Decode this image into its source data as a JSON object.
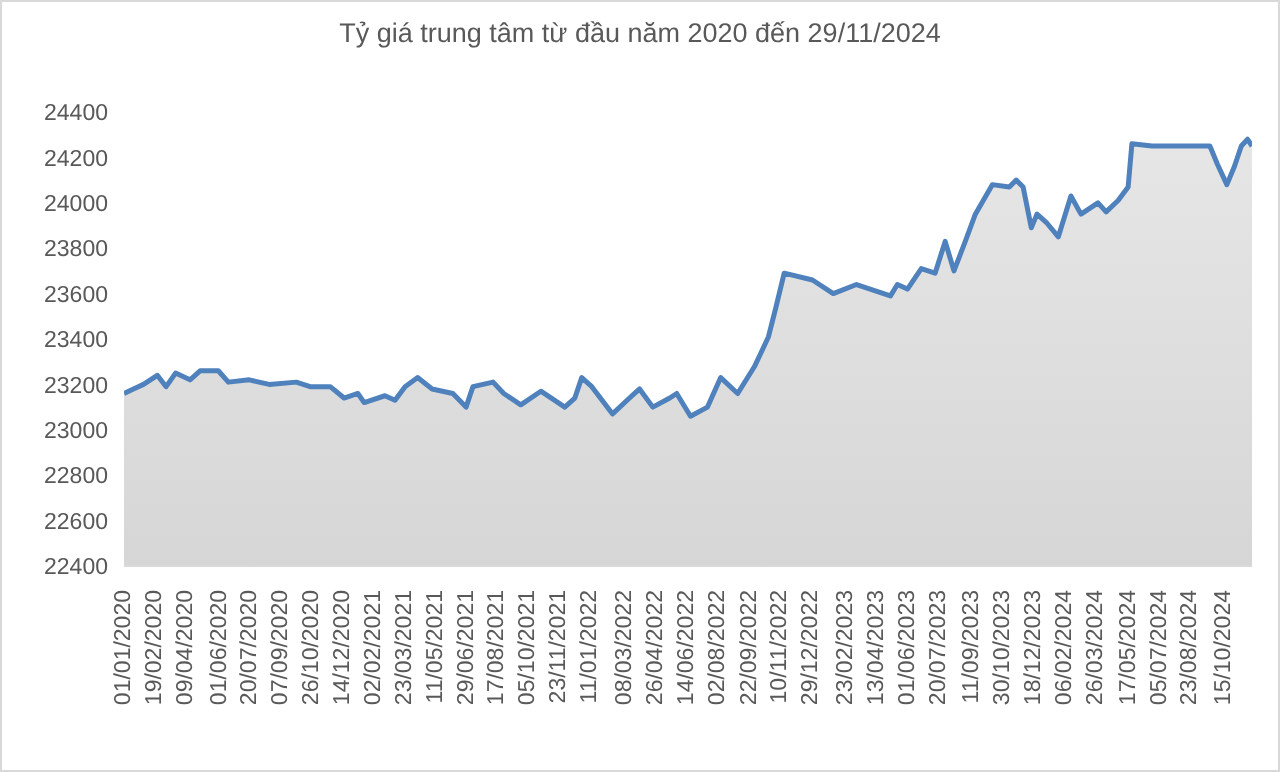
{
  "chart_data": {
    "type": "area",
    "title": "Tỷ giá trung tâm từ đầu năm 2020 đến 29/11/2024",
    "x": [
      "2020-01-01",
      "2020-01-16",
      "2020-02-01",
      "2020-02-23",
      "2020-03-08",
      "2020-03-23",
      "2020-04-15",
      "2020-05-01",
      "2020-05-30",
      "2020-06-15",
      "2020-07-18",
      "2020-08-19",
      "2020-10-01",
      "2020-10-23",
      "2020-11-24",
      "2020-12-16",
      "2021-01-07",
      "2021-01-17",
      "2021-02-19",
      "2021-03-07",
      "2021-03-23",
      "2021-04-12",
      "2021-05-05",
      "2021-06-07",
      "2021-06-28",
      "2021-07-09",
      "2021-08-10",
      "2021-08-27",
      "2021-09-23",
      "2021-10-25",
      "2021-11-16",
      "2021-12-02",
      "2021-12-18",
      "2021-12-29",
      "2022-01-14",
      "2022-02-16",
      "2022-03-15",
      "2022-03-31",
      "2022-04-21",
      "2022-05-18",
      "2022-05-29",
      "2022-06-20",
      "2022-07-17",
      "2022-08-07",
      "2022-09-03",
      "2022-09-30",
      "2022-10-22",
      "2022-11-02",
      "2022-11-16",
      "2022-12-31",
      "2023-02-02",
      "2023-03-11",
      "2023-05-04",
      "2023-05-15",
      "2023-05-31",
      "2023-06-22",
      "2023-07-14",
      "2023-07-30",
      "2023-08-13",
      "2023-08-31",
      "2023-09-16",
      "2023-10-13",
      "2023-11-09",
      "2023-11-20",
      "2023-12-01",
      "2023-12-14",
      "2023-12-23",
      "2024-01-08",
      "2024-01-26",
      "2024-02-15",
      "2024-03-02",
      "2024-03-29",
      "2024-04-11",
      "2024-04-30",
      "2024-05-16",
      "2024-05-22",
      "2024-06-23",
      "2024-07-26",
      "2024-08-27",
      "2024-09-23",
      "2024-10-05",
      "2024-10-20",
      "2024-11-01",
      "2024-11-12",
      "2024-11-22",
      "2024-11-29"
    ],
    "series": [
      {
        "color": "#4f81bd",
        "values": [
          23160,
          23180,
          23200,
          23240,
          23190,
          23250,
          23220,
          23260,
          23260,
          23210,
          23220,
          23200,
          23210,
          23190,
          23190,
          23140,
          23160,
          23120,
          23150,
          23130,
          23190,
          23230,
          23180,
          23160,
          23100,
          23190,
          23210,
          23160,
          23110,
          23170,
          23130,
          23100,
          23140,
          23230,
          23190,
          23070,
          23140,
          23180,
          23100,
          23140,
          23160,
          23060,
          23100,
          23230,
          23160,
          23280,
          23410,
          23530,
          23690,
          23660,
          23600,
          23640,
          23590,
          23640,
          23620,
          23710,
          23690,
          23830,
          23700,
          23830,
          23950,
          24080,
          24070,
          24100,
          24070,
          23890,
          23950,
          23910,
          23850,
          24030,
          23950,
          24000,
          23960,
          24010,
          24070,
          24260,
          24250,
          24250,
          24250,
          24250,
          24170,
          24080,
          24160,
          24250,
          24280,
          24250
        ]
      }
    ],
    "xlim": [
      "2020-01-01",
      "2024-11-29"
    ],
    "xticks": [
      {
        "value": "2020-01-01",
        "label": "01/01/2020"
      },
      {
        "value": "2020-02-19",
        "label": "19/02/2020"
      },
      {
        "value": "2020-04-09",
        "label": "09/04/2020"
      },
      {
        "value": "2020-06-01",
        "label": "01/06/2020"
      },
      {
        "value": "2020-07-20",
        "label": "20/07/2020"
      },
      {
        "value": "2020-09-07",
        "label": "07/09/2020"
      },
      {
        "value": "2020-10-26",
        "label": "26/10/2020"
      },
      {
        "value": "2020-12-14",
        "label": "14/12/2020"
      },
      {
        "value": "2021-02-02",
        "label": "02/02/2021"
      },
      {
        "value": "2021-03-23",
        "label": "23/03/2021"
      },
      {
        "value": "2021-05-11",
        "label": "11/05/2021"
      },
      {
        "value": "2021-06-29",
        "label": "29/06/2021"
      },
      {
        "value": "2021-08-17",
        "label": "17/08/2021"
      },
      {
        "value": "2021-10-05",
        "label": "05/10/2021"
      },
      {
        "value": "2021-11-23",
        "label": "23/11/2021"
      },
      {
        "value": "2022-01-11",
        "label": "11/01/2022"
      },
      {
        "value": "2022-03-08",
        "label": "08/03/2022"
      },
      {
        "value": "2022-04-26",
        "label": "26/04/2022"
      },
      {
        "value": "2022-06-14",
        "label": "14/06/2022"
      },
      {
        "value": "2022-08-02",
        "label": "02/08/2022"
      },
      {
        "value": "2022-09-22",
        "label": "22/09/2022"
      },
      {
        "value": "2022-11-10",
        "label": "10/11/2022"
      },
      {
        "value": "2022-12-29",
        "label": "29/12/2022"
      },
      {
        "value": "2023-02-23",
        "label": "23/02/2023"
      },
      {
        "value": "2023-04-13",
        "label": "13/04/2023"
      },
      {
        "value": "2023-06-01",
        "label": "01/06/2023"
      },
      {
        "value": "2023-07-20",
        "label": "20/07/2023"
      },
      {
        "value": "2023-09-11",
        "label": "11/09/2023"
      },
      {
        "value": "2023-10-30",
        "label": "30/10/2023"
      },
      {
        "value": "2023-12-18",
        "label": "18/12/2023"
      },
      {
        "value": "2024-02-06",
        "label": "06/02/2024"
      },
      {
        "value": "2024-03-26",
        "label": "26/03/2024"
      },
      {
        "value": "2024-05-17",
        "label": "17/05/2024"
      },
      {
        "value": "2024-07-05",
        "label": "05/07/2024"
      },
      {
        "value": "2024-08-23",
        "label": "23/08/2024"
      },
      {
        "value": "2024-10-15",
        "label": "15/10/2024"
      }
    ],
    "ylim": [
      22400,
      24400
    ],
    "yticks": [
      22400,
      22600,
      22800,
      23000,
      23200,
      23400,
      23600,
      23800,
      24000,
      24200,
      24400
    ]
  }
}
